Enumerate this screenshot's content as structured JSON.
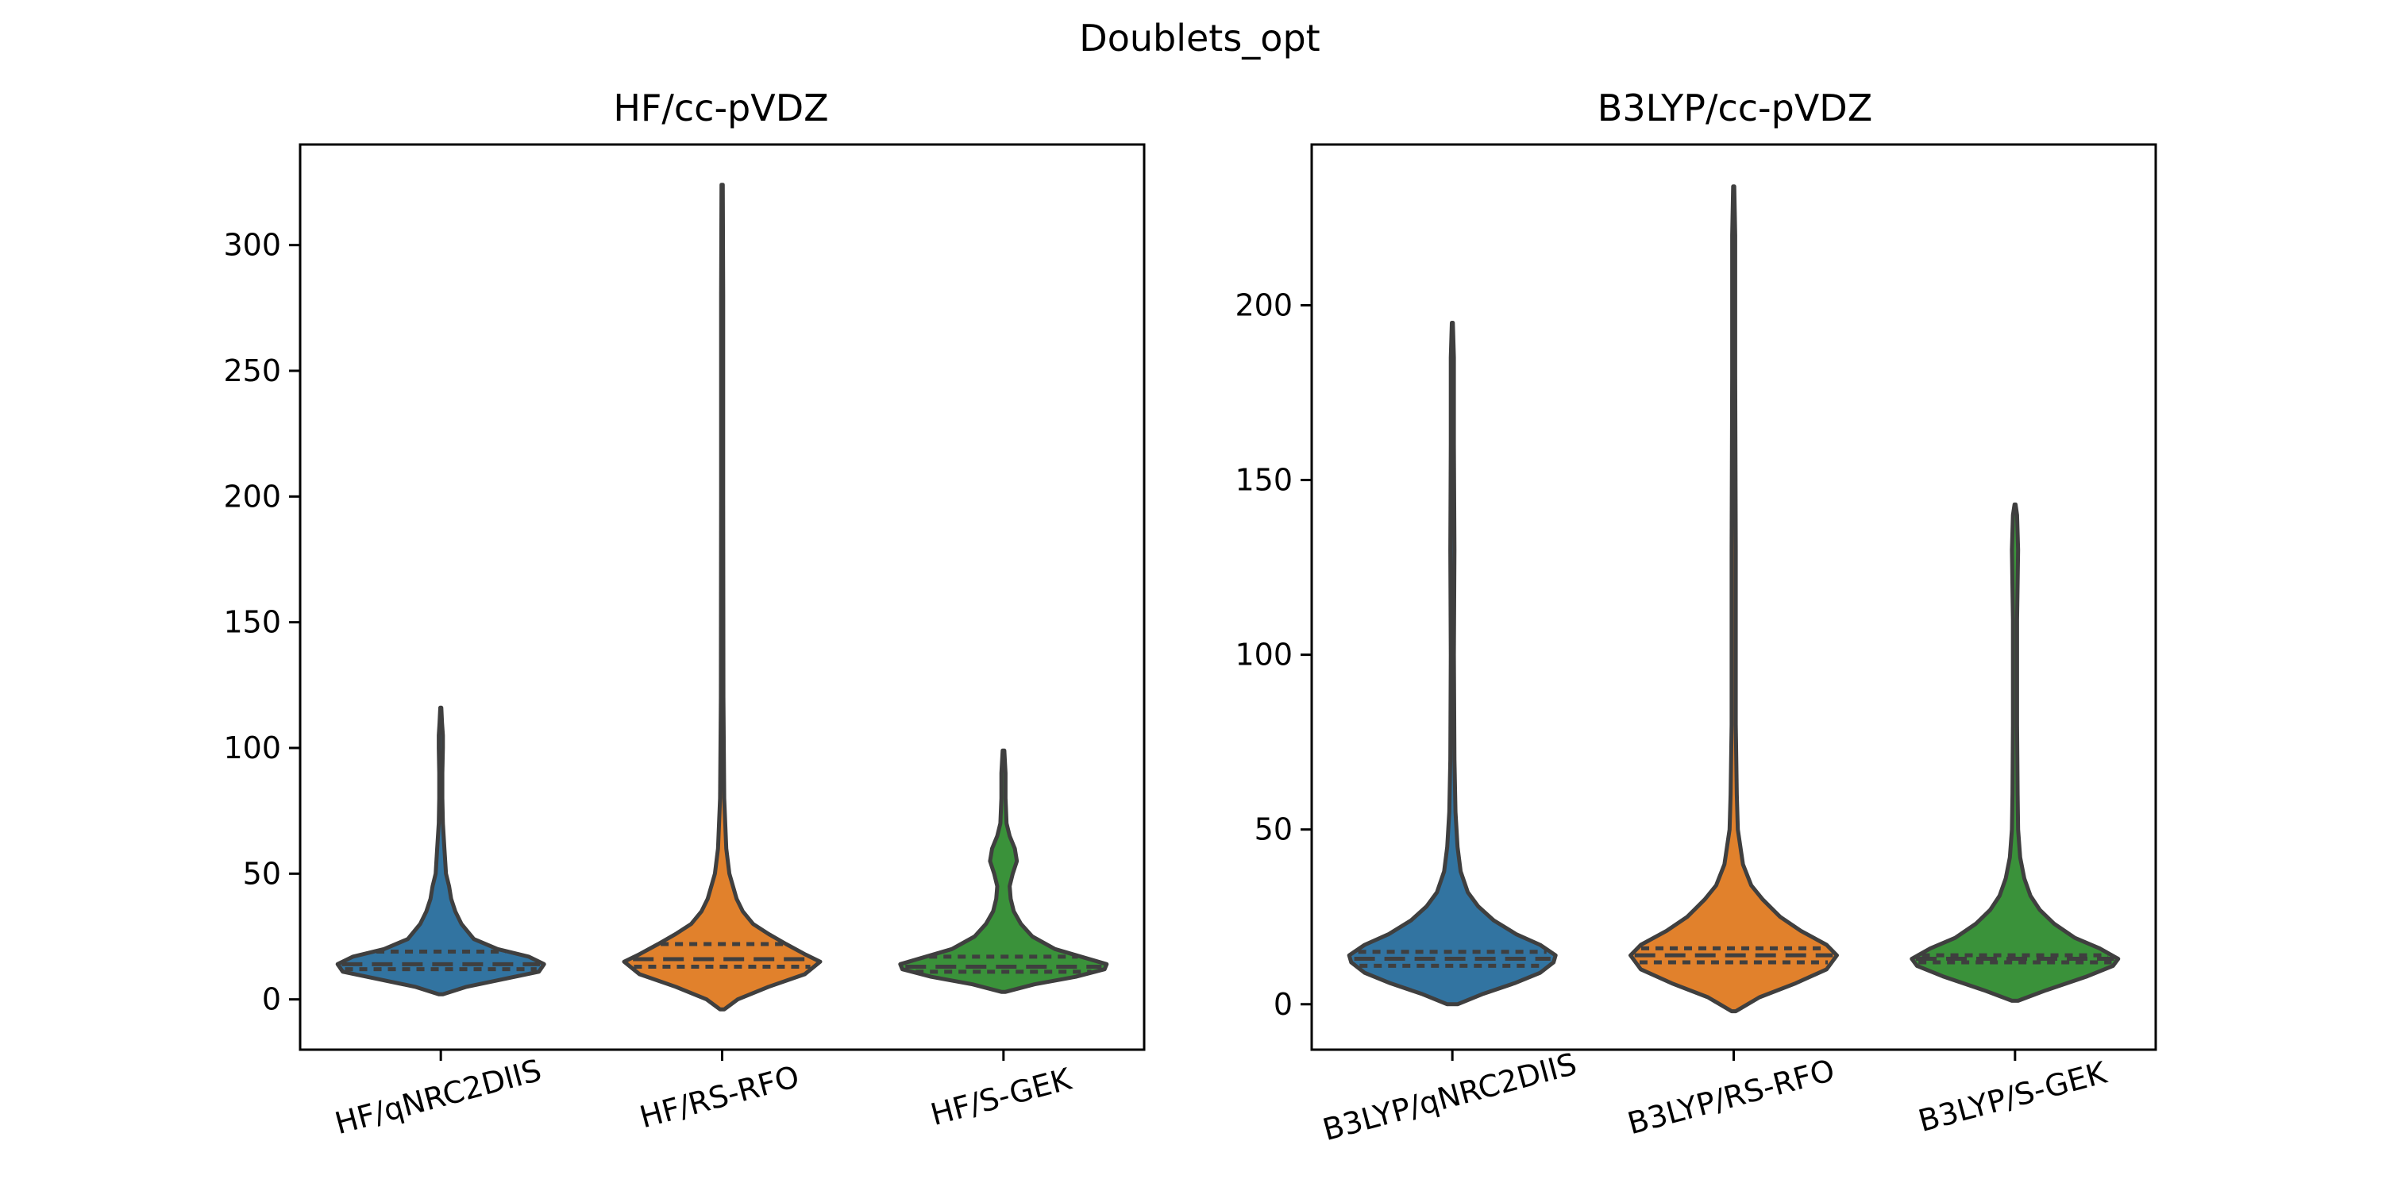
{
  "figure": {
    "title": "Doublets_opt"
  },
  "chart_data": [
    {
      "type": "violin",
      "title": "HF/cc-pVDZ",
      "xlabel": "",
      "ylabel": "",
      "ylim": [
        -20,
        340
      ],
      "yticks": [
        0,
        50,
        100,
        150,
        200,
        250,
        300
      ],
      "categories": [
        "HF/qNRC2DIIS",
        "HF/RS-RFO",
        "HF/S-GEK"
      ],
      "colors": [
        "#3274a1",
        "#e1812c",
        "#3a923a"
      ],
      "series": [
        {
          "min": 2,
          "max": 116,
          "q1": 12,
          "median": 14,
          "q3": 19,
          "density": [
            [
              2,
              0.02
            ],
            [
              5,
              0.25
            ],
            [
              8,
              0.6
            ],
            [
              11,
              0.95
            ],
            [
              14,
              1.0
            ],
            [
              17,
              0.85
            ],
            [
              20,
              0.55
            ],
            [
              24,
              0.32
            ],
            [
              30,
              0.2
            ],
            [
              35,
              0.14
            ],
            [
              40,
              0.1
            ],
            [
              45,
              0.08
            ],
            [
              50,
              0.05
            ],
            [
              60,
              0.035
            ],
            [
              70,
              0.02
            ],
            [
              80,
              0.015
            ],
            [
              90,
              0.015
            ],
            [
              100,
              0.02
            ],
            [
              105,
              0.02
            ],
            [
              110,
              0.012
            ],
            [
              116,
              0.005
            ]
          ]
        },
        {
          "min": -4,
          "max": 324,
          "q1": 13,
          "median": 16,
          "q3": 22,
          "density": [
            [
              -4,
              0.02
            ],
            [
              0,
              0.15
            ],
            [
              5,
              0.45
            ],
            [
              10,
              0.8
            ],
            [
              15,
              0.95
            ],
            [
              18,
              0.8
            ],
            [
              22,
              0.62
            ],
            [
              26,
              0.45
            ],
            [
              30,
              0.3
            ],
            [
              35,
              0.2
            ],
            [
              40,
              0.14
            ],
            [
              50,
              0.07
            ],
            [
              60,
              0.04
            ],
            [
              80,
              0.02
            ],
            [
              120,
              0.012
            ],
            [
              200,
              0.01
            ],
            [
              280,
              0.01
            ],
            [
              324,
              0.006
            ]
          ]
        },
        {
          "min": 3,
          "max": 99,
          "q1": 11,
          "median": 13,
          "q3": 17,
          "density": [
            [
              3,
              0.02
            ],
            [
              6,
              0.3
            ],
            [
              9,
              0.7
            ],
            [
              12,
              0.98
            ],
            [
              14,
              1.0
            ],
            [
              17,
              0.75
            ],
            [
              20,
              0.5
            ],
            [
              25,
              0.28
            ],
            [
              30,
              0.17
            ],
            [
              35,
              0.1
            ],
            [
              40,
              0.07
            ],
            [
              45,
              0.06
            ],
            [
              50,
              0.09
            ],
            [
              55,
              0.13
            ],
            [
              60,
              0.11
            ],
            [
              65,
              0.06
            ],
            [
              70,
              0.03
            ],
            [
              80,
              0.02
            ],
            [
              90,
              0.02
            ],
            [
              99,
              0.008
            ]
          ]
        }
      ]
    },
    {
      "type": "violin",
      "title": "B3LYP/cc-pVDZ",
      "xlabel": "",
      "ylabel": "",
      "ylim": [
        -13,
        246
      ],
      "yticks": [
        0,
        50,
        100,
        150,
        200
      ],
      "categories": [
        "B3LYP/qNRC2DIIS",
        "B3LYP/RS-RFO",
        "B3LYP/S-GEK"
      ],
      "colors": [
        "#3274a1",
        "#e1812c",
        "#3a923a"
      ],
      "series": [
        {
          "min": 0,
          "max": 195,
          "q1": 11,
          "median": 13,
          "q3": 15,
          "density": [
            [
              0,
              0.05
            ],
            [
              3,
              0.3
            ],
            [
              6,
              0.6
            ],
            [
              9,
              0.85
            ],
            [
              12,
              0.98
            ],
            [
              14,
              1.0
            ],
            [
              17,
              0.85
            ],
            [
              20,
              0.62
            ],
            [
              24,
              0.4
            ],
            [
              28,
              0.25
            ],
            [
              32,
              0.15
            ],
            [
              38,
              0.08
            ],
            [
              45,
              0.05
            ],
            [
              55,
              0.03
            ],
            [
              70,
              0.02
            ],
            [
              100,
              0.015
            ],
            [
              130,
              0.02
            ],
            [
              160,
              0.015
            ],
            [
              185,
              0.015
            ],
            [
              195,
              0.005
            ]
          ]
        },
        {
          "min": -2,
          "max": 234,
          "q1": 12,
          "median": 14,
          "q3": 16,
          "density": [
            [
              -2,
              0.02
            ],
            [
              2,
              0.25
            ],
            [
              6,
              0.6
            ],
            [
              10,
              0.9
            ],
            [
              14,
              1.0
            ],
            [
              17,
              0.9
            ],
            [
              21,
              0.65
            ],
            [
              25,
              0.45
            ],
            [
              30,
              0.28
            ],
            [
              34,
              0.17
            ],
            [
              40,
              0.09
            ],
            [
              50,
              0.04
            ],
            [
              60,
              0.03
            ],
            [
              80,
              0.02
            ],
            [
              130,
              0.02
            ],
            [
              180,
              0.015
            ],
            [
              220,
              0.015
            ],
            [
              234,
              0.005
            ]
          ]
        },
        {
          "min": 1,
          "max": 143,
          "q1": 12,
          "median": 13,
          "q3": 14,
          "density": [
            [
              1,
              0.03
            ],
            [
              4,
              0.3
            ],
            [
              8,
              0.7
            ],
            [
              11,
              0.95
            ],
            [
              13,
              1.0
            ],
            [
              16,
              0.82
            ],
            [
              19,
              0.58
            ],
            [
              23,
              0.38
            ],
            [
              27,
              0.24
            ],
            [
              31,
              0.15
            ],
            [
              36,
              0.09
            ],
            [
              42,
              0.05
            ],
            [
              50,
              0.03
            ],
            [
              60,
              0.025
            ],
            [
              80,
              0.02
            ],
            [
              110,
              0.02
            ],
            [
              130,
              0.03
            ],
            [
              140,
              0.02
            ],
            [
              143,
              0.005
            ]
          ]
        }
      ]
    }
  ]
}
